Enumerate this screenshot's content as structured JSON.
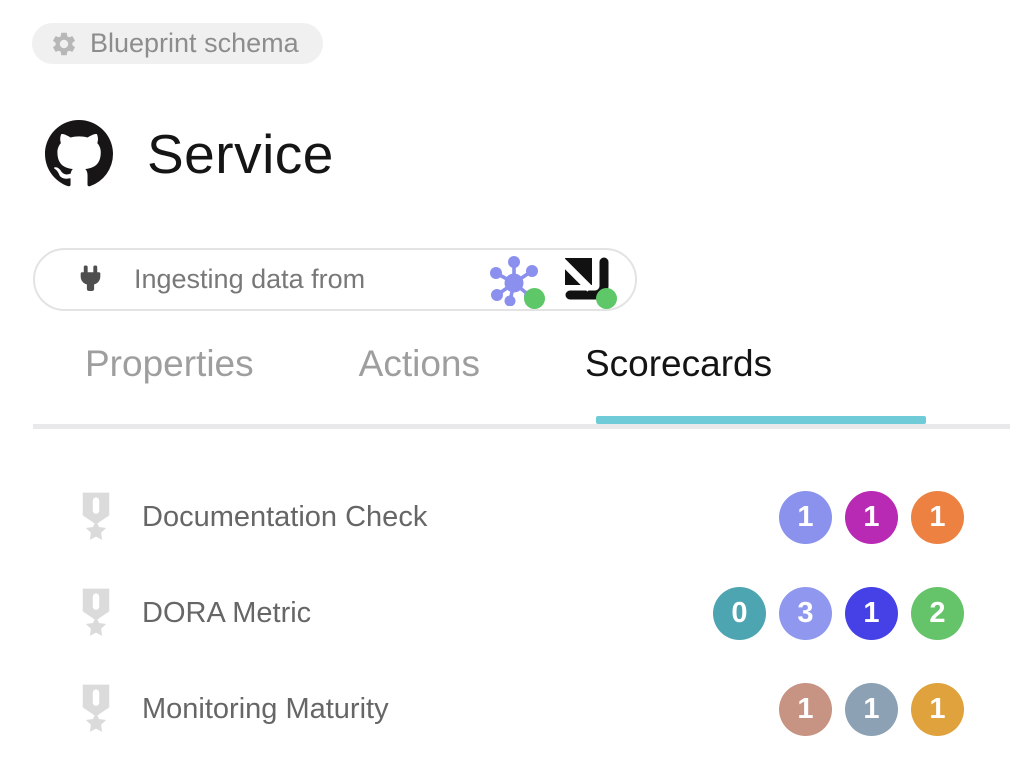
{
  "schema_badge": {
    "label": "Blueprint schema",
    "icon": "gear-icon"
  },
  "header": {
    "title": "Service",
    "icon": "github-logo"
  },
  "ingestion": {
    "label": "Ingesting data from",
    "icon": "plug-icon",
    "integrations": [
      {
        "icon": "cluster-integration-icon",
        "status_color": "#5ec768"
      },
      {
        "icon": "code-quality-integration-icon",
        "status_color": "#5ec768"
      }
    ]
  },
  "tabs": [
    {
      "label": "Properties",
      "active": false
    },
    {
      "label": "Actions",
      "active": false
    },
    {
      "label": "Scorecards",
      "active": true
    }
  ],
  "scorecards": [
    {
      "name": "Documentation Check",
      "badges": [
        {
          "value": "1",
          "color": "#8a92ed"
        },
        {
          "value": "1",
          "color": "#b92ab4"
        },
        {
          "value": "1",
          "color": "#ec8142"
        }
      ]
    },
    {
      "name": "DORA Metric",
      "badges": [
        {
          "value": "0",
          "color": "#4da5b1"
        },
        {
          "value": "3",
          "color": "#8f97ef"
        },
        {
          "value": "1",
          "color": "#4541e6"
        },
        {
          "value": "2",
          "color": "#65c369"
        }
      ]
    },
    {
      "name": "Monitoring Maturity",
      "badges": [
        {
          "value": "1",
          "color": "#c79383"
        },
        {
          "value": "1",
          "color": "#8ca1b4"
        },
        {
          "value": "1",
          "color": "#dfa23d"
        }
      ]
    }
  ],
  "colors": {
    "active_tab_underline": "#70cbd8",
    "status_green": "#5ec768",
    "pill_background": "#f0f0f0",
    "medal_gray": "#dbdbdb"
  }
}
